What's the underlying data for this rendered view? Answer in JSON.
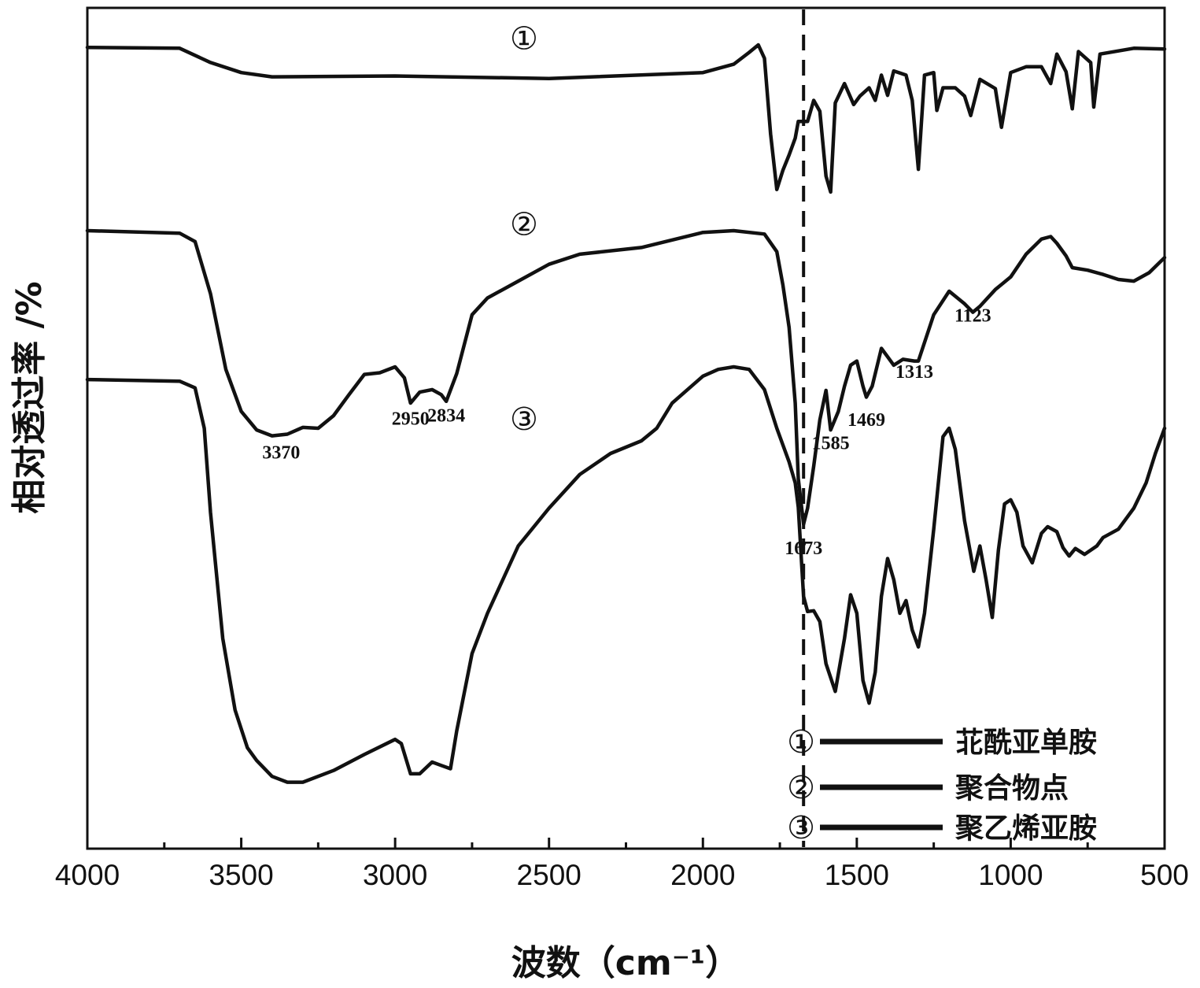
{
  "chart_data": {
    "type": "line",
    "xlabel": "波数（cm⁻¹）",
    "ylabel": "相对透过率 /%",
    "xlim": [
      4000,
      500
    ],
    "x_reversed": true,
    "ylim": [
      0,
      100
    ],
    "x_ticks": [
      4000,
      3500,
      3000,
      2500,
      2000,
      1500,
      1000,
      500
    ],
    "grid": false,
    "legend_position": "bottom-right",
    "reference_line_x": 1673,
    "series": [
      {
        "name": "苝酰亚单胺",
        "marker": "①",
        "points": [
          [
            4000,
            95.3
          ],
          [
            3700,
            95.2
          ],
          [
            3600,
            93.5
          ],
          [
            3500,
            92.3
          ],
          [
            3400,
            91.8
          ],
          [
            3000,
            91.9
          ],
          [
            2500,
            91.6
          ],
          [
            2000,
            92.3
          ],
          [
            1900,
            93.3
          ],
          [
            1850,
            94.7
          ],
          [
            1820,
            95.6
          ],
          [
            1800,
            94.0
          ],
          [
            1780,
            85.0
          ],
          [
            1760,
            78.4
          ],
          [
            1740,
            80.7
          ],
          [
            1720,
            82.5
          ],
          [
            1700,
            84.5
          ],
          [
            1690,
            86.5
          ],
          [
            1660,
            86.5
          ],
          [
            1640,
            89.0
          ],
          [
            1620,
            87.7
          ],
          [
            1600,
            80.0
          ],
          [
            1585,
            78.1
          ],
          [
            1570,
            88.7
          ],
          [
            1540,
            91.0
          ],
          [
            1510,
            88.5
          ],
          [
            1490,
            89.5
          ],
          [
            1460,
            90.5
          ],
          [
            1440,
            89.0
          ],
          [
            1420,
            92.0
          ],
          [
            1400,
            89.6
          ],
          [
            1380,
            92.5
          ],
          [
            1340,
            92.0
          ],
          [
            1320,
            89.0
          ],
          [
            1300,
            80.8
          ],
          [
            1280,
            92.0
          ],
          [
            1250,
            92.3
          ],
          [
            1240,
            87.8
          ],
          [
            1220,
            90.5
          ],
          [
            1180,
            90.5
          ],
          [
            1150,
            89.5
          ],
          [
            1130,
            87.2
          ],
          [
            1100,
            91.5
          ],
          [
            1050,
            90.4
          ],
          [
            1030,
            85.8
          ],
          [
            1000,
            92.3
          ],
          [
            950,
            93.0
          ],
          [
            900,
            93.0
          ],
          [
            870,
            91.0
          ],
          [
            850,
            94.5
          ],
          [
            820,
            92.4
          ],
          [
            800,
            88.0
          ],
          [
            780,
            94.8
          ],
          [
            740,
            93.5
          ],
          [
            730,
            88.2
          ],
          [
            710,
            94.5
          ],
          [
            600,
            95.2
          ],
          [
            500,
            95.1
          ]
        ]
      },
      {
        "name": "聚合物点",
        "marker": "②",
        "points": [
          [
            4000,
            73.5
          ],
          [
            3700,
            73.2
          ],
          [
            3650,
            72.2
          ],
          [
            3600,
            66.0
          ],
          [
            3550,
            57.0
          ],
          [
            3500,
            52.0
          ],
          [
            3450,
            49.8
          ],
          [
            3400,
            49.1
          ],
          [
            3350,
            49.3
          ],
          [
            3300,
            50.1
          ],
          [
            3250,
            50.0
          ],
          [
            3200,
            51.5
          ],
          [
            3150,
            54.0
          ],
          [
            3100,
            56.4
          ],
          [
            3050,
            56.6
          ],
          [
            3000,
            57.3
          ],
          [
            2970,
            56.0
          ],
          [
            2950,
            53.0
          ],
          [
            2920,
            54.3
          ],
          [
            2880,
            54.6
          ],
          [
            2850,
            54.0
          ],
          [
            2834,
            53.2
          ],
          [
            2800,
            56.5
          ],
          [
            2750,
            63.5
          ],
          [
            2700,
            65.5
          ],
          [
            2600,
            67.5
          ],
          [
            2500,
            69.5
          ],
          [
            2400,
            70.7
          ],
          [
            2200,
            71.5
          ],
          [
            2000,
            73.3
          ],
          [
            1900,
            73.5
          ],
          [
            1800,
            73.1
          ],
          [
            1760,
            71.0
          ],
          [
            1740,
            67.0
          ],
          [
            1720,
            62.0
          ],
          [
            1700,
            53.0
          ],
          [
            1690,
            44.0
          ],
          [
            1673,
            38.6
          ],
          [
            1660,
            40.5
          ],
          [
            1640,
            45.5
          ],
          [
            1620,
            51.0
          ],
          [
            1600,
            54.5
          ],
          [
            1585,
            49.8
          ],
          [
            1560,
            52.0
          ],
          [
            1540,
            55.0
          ],
          [
            1520,
            57.5
          ],
          [
            1500,
            58.0
          ],
          [
            1480,
            55.0
          ],
          [
            1469,
            53.7
          ],
          [
            1450,
            55.0
          ],
          [
            1430,
            58.0
          ],
          [
            1420,
            59.5
          ],
          [
            1400,
            58.5
          ],
          [
            1380,
            57.5
          ],
          [
            1350,
            58.2
          ],
          [
            1313,
            58.0
          ],
          [
            1300,
            58.0
          ],
          [
            1250,
            63.5
          ],
          [
            1200,
            66.3
          ],
          [
            1150,
            64.8
          ],
          [
            1123,
            63.8
          ],
          [
            1100,
            64.5
          ],
          [
            1050,
            66.5
          ],
          [
            1000,
            68.0
          ],
          [
            950,
            70.7
          ],
          [
            900,
            72.5
          ],
          [
            870,
            72.8
          ],
          [
            850,
            72.0
          ],
          [
            820,
            70.5
          ],
          [
            800,
            69.1
          ],
          [
            750,
            68.8
          ],
          [
            700,
            68.3
          ],
          [
            650,
            67.7
          ],
          [
            600,
            67.5
          ],
          [
            550,
            68.5
          ],
          [
            500,
            70.3
          ]
        ]
      },
      {
        "name": "聚乙烯亚胺",
        "marker": "③",
        "points": [
          [
            4000,
            55.8
          ],
          [
            3700,
            55.6
          ],
          [
            3650,
            54.8
          ],
          [
            3620,
            50.0
          ],
          [
            3600,
            40.0
          ],
          [
            3560,
            25.0
          ],
          [
            3520,
            16.5
          ],
          [
            3480,
            12.0
          ],
          [
            3450,
            10.5
          ],
          [
            3400,
            8.6
          ],
          [
            3350,
            7.9
          ],
          [
            3300,
            7.9
          ],
          [
            3200,
            9.3
          ],
          [
            3100,
            11.2
          ],
          [
            3000,
            13.0
          ],
          [
            2980,
            12.5
          ],
          [
            2950,
            8.9
          ],
          [
            2920,
            8.9
          ],
          [
            2880,
            10.3
          ],
          [
            2850,
            9.9
          ],
          [
            2820,
            9.5
          ],
          [
            2800,
            14.0
          ],
          [
            2750,
            23.2
          ],
          [
            2700,
            28.0
          ],
          [
            2600,
            36.0
          ],
          [
            2500,
            40.5
          ],
          [
            2400,
            44.5
          ],
          [
            2300,
            47.0
          ],
          [
            2200,
            48.5
          ],
          [
            2150,
            50.0
          ],
          [
            2100,
            53.0
          ],
          [
            2000,
            56.2
          ],
          [
            1950,
            57.0
          ],
          [
            1900,
            57.3
          ],
          [
            1850,
            57.0
          ],
          [
            1800,
            54.6
          ],
          [
            1760,
            50.0
          ],
          [
            1740,
            48.0
          ],
          [
            1720,
            46.0
          ],
          [
            1700,
            43.5
          ],
          [
            1690,
            40.6
          ],
          [
            1673,
            30.0
          ],
          [
            1660,
            28.2
          ],
          [
            1640,
            28.3
          ],
          [
            1620,
            27.0
          ],
          [
            1600,
            22.0
          ],
          [
            1570,
            18.7
          ],
          [
            1540,
            25.0
          ],
          [
            1520,
            30.2
          ],
          [
            1500,
            28.0
          ],
          [
            1480,
            20.0
          ],
          [
            1460,
            17.3
          ],
          [
            1440,
            21.0
          ],
          [
            1420,
            30.0
          ],
          [
            1400,
            34.5
          ],
          [
            1380,
            32.0
          ],
          [
            1360,
            28.0
          ],
          [
            1340,
            29.5
          ],
          [
            1320,
            26.0
          ],
          [
            1300,
            24.0
          ],
          [
            1280,
            28.0
          ],
          [
            1250,
            38.0
          ],
          [
            1220,
            49.0
          ],
          [
            1200,
            50.0
          ],
          [
            1180,
            47.5
          ],
          [
            1150,
            39.0
          ],
          [
            1120,
            33.0
          ],
          [
            1100,
            36.0
          ],
          [
            1080,
            32.0
          ],
          [
            1060,
            27.5
          ],
          [
            1040,
            35.5
          ],
          [
            1020,
            41.0
          ],
          [
            1000,
            41.5
          ],
          [
            980,
            40.0
          ],
          [
            960,
            36.0
          ],
          [
            930,
            34.0
          ],
          [
            900,
            37.5
          ],
          [
            880,
            38.3
          ],
          [
            850,
            37.7
          ],
          [
            830,
            35.8
          ],
          [
            810,
            34.8
          ],
          [
            790,
            35.7
          ],
          [
            760,
            35.0
          ],
          [
            720,
            36.0
          ],
          [
            700,
            37.0
          ],
          [
            650,
            38.0
          ],
          [
            600,
            40.5
          ],
          [
            560,
            43.5
          ],
          [
            530,
            47.0
          ],
          [
            500,
            50.0
          ]
        ]
      }
    ],
    "annotations": [
      {
        "text": "3370",
        "x": 3370,
        "y": 46.4
      },
      {
        "text": "2950",
        "x": 2950,
        "y": 50.4
      },
      {
        "text": "2834",
        "x": 2834,
        "y": 50.8
      },
      {
        "text": "1673",
        "x": 1673,
        "y": 35.0
      },
      {
        "text": "1585",
        "x": 1585,
        "y": 47.5
      },
      {
        "text": "1469",
        "x": 1469,
        "y": 50.3
      },
      {
        "text": "1313",
        "x": 1313,
        "y": 56.0
      },
      {
        "text": "1123",
        "x": 1123,
        "y": 62.7
      }
    ]
  }
}
